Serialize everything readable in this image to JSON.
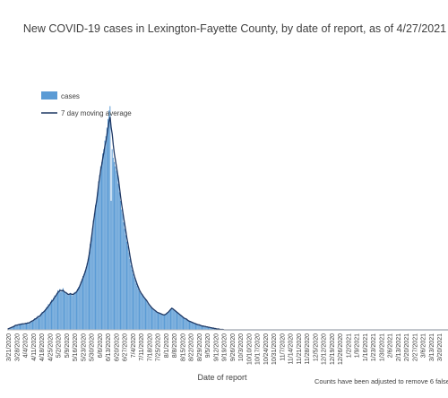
{
  "chart_data": {
    "type": "bar",
    "title": "New COVID-19 cases in Lexington-Fayette County, by date of report, as of 4/27/2021",
    "xlabel": "Date of report",
    "ylabel": "",
    "note": "Counts have been adjusted to remove 6 false-",
    "legend_position": "upper-left",
    "grid": false,
    "bar_color": "#5b9bd5",
    "line_color": "#1f3864",
    "ylim": [
      0,
      600
    ],
    "x_tick_labels": [
      "3/21/2020",
      "3/28/2020",
      "4/4/2020",
      "4/11/2020",
      "4/18/2020",
      "4/25/2020",
      "5/2/2020",
      "5/9/2020",
      "5/16/2020",
      "5/23/2020",
      "5/30/2020",
      "6/6/2020",
      "6/13/2020",
      "6/20/2020",
      "6/27/2020",
      "7/4/2020",
      "7/11/2020",
      "7/18/2020",
      "7/25/2020",
      "8/1/2020",
      "8/8/2020",
      "8/15/2020",
      "8/22/2020",
      "8/29/2020",
      "9/5/2020",
      "9/12/2020",
      "9/19/2020",
      "9/26/2020",
      "10/3/2020",
      "10/10/2020",
      "10/17/2020",
      "10/24/2020",
      "10/31/2020",
      "11/7/2020",
      "11/14/2020",
      "11/21/2020",
      "11/28/2020",
      "12/5/2020",
      "12/12/2020",
      "12/19/2020",
      "12/26/2020",
      "1/2/2021",
      "1/9/2021",
      "1/16/2021",
      "1/23/2021",
      "1/30/2021",
      "2/6/2021",
      "2/13/2021",
      "2/20/2021",
      "2/27/2021",
      "3/6/2021",
      "3/13/2021",
      "3/20/2021",
      "3/27/2021"
    ],
    "series": [
      {
        "name": "cases",
        "type": "bar",
        "values": [
          1,
          2,
          3,
          4,
          5,
          7,
          8,
          9,
          10,
          12,
          10,
          14,
          12,
          15,
          13,
          14,
          12,
          16,
          15,
          17,
          14,
          18,
          20,
          22,
          19,
          24,
          27,
          25,
          30,
          33,
          28,
          34,
          38,
          42,
          40,
          45,
          48,
          52,
          55,
          60,
          58,
          65,
          70,
          68,
          75,
          80,
          78,
          85,
          92,
          90,
          95,
          88,
          93,
          97,
          90,
          85,
          88,
          83,
          80,
          84,
          86,
          82,
          79,
          83,
          88,
          85,
          90,
          96,
          100,
          105,
          112,
          118,
          125,
          130,
          137,
          145,
          155,
          165,
          180,
          200,
          215,
          235,
          255,
          270,
          290,
          300,
          320,
          345,
          360,
          380,
          390,
          410,
          420,
          440,
          450,
          470,
          490,
          510,
          520,
          300,
          420,
          400,
          390,
          380,
          370,
          360,
          340,
          320,
          300,
          280,
          270,
          250,
          235,
          220,
          205,
          195,
          180,
          165,
          150,
          140,
          130,
          122,
          116,
          108,
          102,
          96,
          90,
          86,
          84,
          80,
          76,
          72,
          70,
          68,
          62,
          58,
          55,
          52,
          50,
          48,
          46,
          44,
          42,
          40,
          39,
          38,
          38,
          36,
          35,
          34,
          35,
          36,
          38,
          40,
          42,
          45,
          48,
          52,
          50,
          48,
          46,
          44,
          42,
          40,
          38,
          36,
          34,
          32,
          30,
          28,
          26,
          25,
          24,
          22,
          20,
          19,
          18,
          17,
          16,
          15,
          14,
          13,
          12,
          12,
          11,
          10,
          9,
          9,
          8,
          8,
          7,
          7,
          6,
          6,
          5,
          5,
          4,
          4,
          3,
          3,
          2,
          2,
          2,
          1,
          1,
          1,
          1,
          0,
          0,
          0,
          0,
          0,
          0,
          0,
          0,
          0,
          0,
          0,
          0,
          0,
          0,
          0,
          0,
          0,
          0,
          0,
          0,
          0,
          0,
          0,
          0,
          0,
          0,
          0,
          0,
          0,
          0,
          0,
          0,
          0,
          0,
          0,
          0,
          0,
          0,
          0,
          0,
          0,
          0,
          0,
          0,
          0,
          0,
          0,
          0,
          0,
          0,
          0,
          0,
          0,
          0,
          0,
          0,
          0,
          0,
          0,
          0,
          0,
          0,
          0,
          0,
          0,
          0,
          0,
          0,
          0,
          0,
          0,
          0,
          0,
          0,
          0,
          0,
          0,
          0,
          0,
          0,
          0,
          0,
          0,
          0,
          0,
          0,
          0,
          0,
          0,
          0,
          0,
          0,
          0,
          0,
          0,
          0,
          0,
          0,
          0,
          0,
          0,
          0,
          0,
          0,
          0,
          0,
          0,
          0,
          0,
          0,
          0,
          0,
          0,
          0,
          0,
          0,
          0,
          0,
          0,
          0,
          0,
          0,
          0,
          0,
          0,
          0,
          0,
          0,
          0,
          0,
          0,
          0,
          0,
          0,
          0,
          0,
          0,
          0,
          0,
          0,
          0,
          0,
          0,
          0,
          0,
          0,
          0,
          0,
          0,
          0,
          0,
          0,
          0,
          0,
          0,
          0,
          0,
          0,
          0,
          0,
          0,
          0,
          0,
          0,
          0,
          0,
          0,
          0,
          0,
          0,
          0,
          0,
          0,
          0,
          0,
          0,
          0,
          0,
          0,
          0,
          0,
          0,
          0,
          0,
          0,
          0,
          0,
          0,
          0,
          0,
          0,
          0,
          0,
          0,
          0,
          0,
          0,
          0,
          0,
          0,
          0,
          0,
          0,
          0,
          0,
          0,
          0,
          0,
          0,
          0,
          0,
          0,
          0
        ]
      },
      {
        "name": "7 day moving average",
        "type": "line",
        "values": [
          2,
          3,
          4,
          5,
          6,
          7,
          8,
          10,
          11,
          11,
          12,
          12,
          13,
          13,
          14,
          14,
          14,
          15,
          15,
          16,
          16,
          17,
          19,
          20,
          21,
          23,
          25,
          26,
          28,
          30,
          31,
          33,
          36,
          39,
          41,
          43,
          46,
          49,
          52,
          55,
          58,
          62,
          66,
          68,
          72,
          76,
          79,
          83,
          87,
          89,
          92,
          91,
          91,
          92,
          89,
          87,
          86,
          84,
          82,
          83,
          84,
          83,
          82,
          83,
          85,
          86,
          89,
          93,
          97,
          102,
          108,
          114,
          121,
          127,
          134,
          142,
          151,
          162,
          176,
          194,
          211,
          230,
          250,
          266,
          285,
          298,
          317,
          339,
          355,
          372,
          384,
          400,
          412,
          428,
          438,
          455,
          470,
          485,
          495,
          470,
          455,
          430,
          410,
          395,
          380,
          365,
          350,
          330,
          310,
          292,
          276,
          260,
          245,
          230,
          214,
          201,
          187,
          172,
          158,
          146,
          136,
          127,
          119,
          112,
          105,
          99,
          93,
          88,
          84,
          81,
          77,
          74,
          71,
          68,
          64,
          60,
          57,
          54,
          51,
          49,
          47,
          45,
          43,
          41,
          40,
          39,
          38,
          37,
          36,
          35,
          35,
          36,
          38,
          40,
          42,
          45,
          48,
          50,
          49,
          47,
          45,
          43,
          41,
          39,
          37,
          35,
          33,
          31,
          29,
          27,
          26,
          25,
          23,
          21,
          20,
          19,
          18,
          17,
          16,
          15,
          14,
          13,
          12,
          12,
          11,
          10,
          9,
          9,
          8,
          8,
          7,
          7,
          6,
          6,
          5,
          5,
          4,
          4,
          3,
          3,
          2,
          2,
          2,
          1,
          1,
          1,
          1,
          0,
          0,
          0,
          0,
          0,
          0,
          0,
          0,
          0,
          0,
          0,
          0,
          0,
          0,
          0,
          0,
          0,
          0,
          0,
          0,
          0,
          0,
          0,
          0,
          0,
          0,
          0,
          0,
          0,
          0,
          0,
          0,
          0,
          0,
          0,
          0,
          0,
          0,
          0,
          0,
          0,
          0,
          0,
          0,
          0,
          0,
          0,
          0,
          0,
          0,
          0,
          0,
          0,
          0,
          0,
          0,
          0,
          0,
          0,
          0,
          0,
          0,
          0,
          0,
          0,
          0,
          0,
          0,
          0,
          0,
          0,
          0,
          0,
          0,
          0,
          0,
          0,
          0,
          0,
          0,
          0,
          0,
          0,
          0,
          0,
          0,
          0,
          0,
          0,
          0,
          0,
          0,
          0,
          0,
          0,
          0,
          0,
          0,
          0,
          0,
          0,
          0,
          0,
          0,
          0,
          0,
          0,
          0,
          0,
          0,
          0,
          0,
          0,
          0,
          0,
          0,
          0,
          0,
          0,
          0,
          0,
          0,
          0,
          0,
          0,
          0,
          0,
          0,
          0,
          0,
          0,
          0,
          0,
          0,
          0,
          0,
          0,
          0,
          0,
          0,
          0,
          0,
          0,
          0,
          0,
          0,
          0,
          0,
          0,
          0,
          0,
          0,
          0,
          0,
          0,
          0,
          0,
          0,
          0,
          0,
          0,
          0,
          0,
          0,
          0,
          0,
          0,
          0,
          0,
          0,
          0,
          0,
          0,
          0,
          0,
          0,
          0,
          0,
          0,
          0,
          0,
          0,
          0,
          0,
          0,
          0,
          0,
          0,
          0,
          0,
          0,
          0,
          0,
          0,
          0,
          0,
          0,
          0,
          0,
          0,
          0,
          0,
          0,
          0,
          0,
          0,
          0,
          0,
          0,
          0,
          0,
          0,
          0,
          0,
          0,
          0,
          0,
          0,
          0,
          0,
          0,
          0,
          0,
          0,
          0,
          0,
          0,
          0,
          0,
          0,
          0,
          0,
          0,
          0,
          0,
          0,
          0,
          0,
          0,
          0,
          0,
          0,
          0,
          0,
          0,
          0,
          0,
          0,
          0,
          0,
          0,
          0,
          0,
          0,
          0,
          0,
          0,
          0,
          0,
          0,
          0,
          0,
          0,
          0
        ]
      }
    ]
  }
}
